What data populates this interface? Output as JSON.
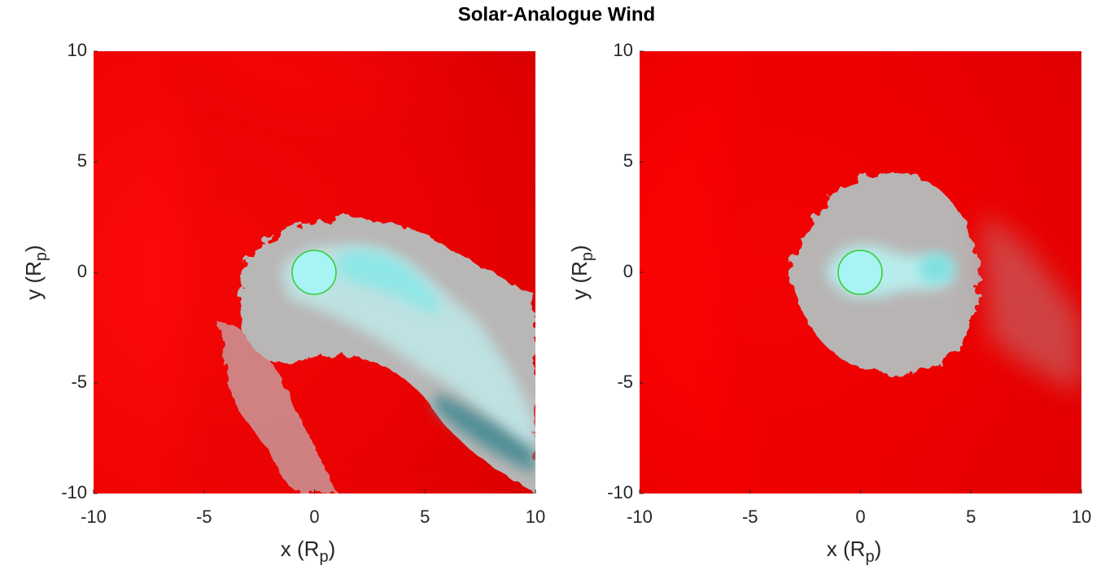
{
  "title": "Solar-Analogue Wind",
  "chart_data": [
    {
      "type": "image",
      "xlim": [
        -10,
        10
      ],
      "ylim": [
        -10,
        10
      ],
      "xticks": [
        -10,
        -5,
        0,
        5,
        10
      ],
      "yticks": [
        -10,
        -5,
        0,
        5,
        10
      ],
      "xlabel": [
        "x (R",
        "p",
        ")"
      ],
      "ylabel": [
        "y (R",
        "p",
        ")"
      ]
    },
    {
      "type": "image",
      "xlim": [
        -10,
        10
      ],
      "ylim": [
        -10,
        10
      ],
      "xticks": [
        -10,
        -5,
        0,
        5,
        10
      ],
      "yticks": [
        -10,
        -5,
        0,
        5,
        10
      ],
      "xlabel": [
        "x (R",
        "p",
        ")"
      ],
      "ylabel": [
        "y (R",
        "p",
        ")"
      ]
    }
  ]
}
